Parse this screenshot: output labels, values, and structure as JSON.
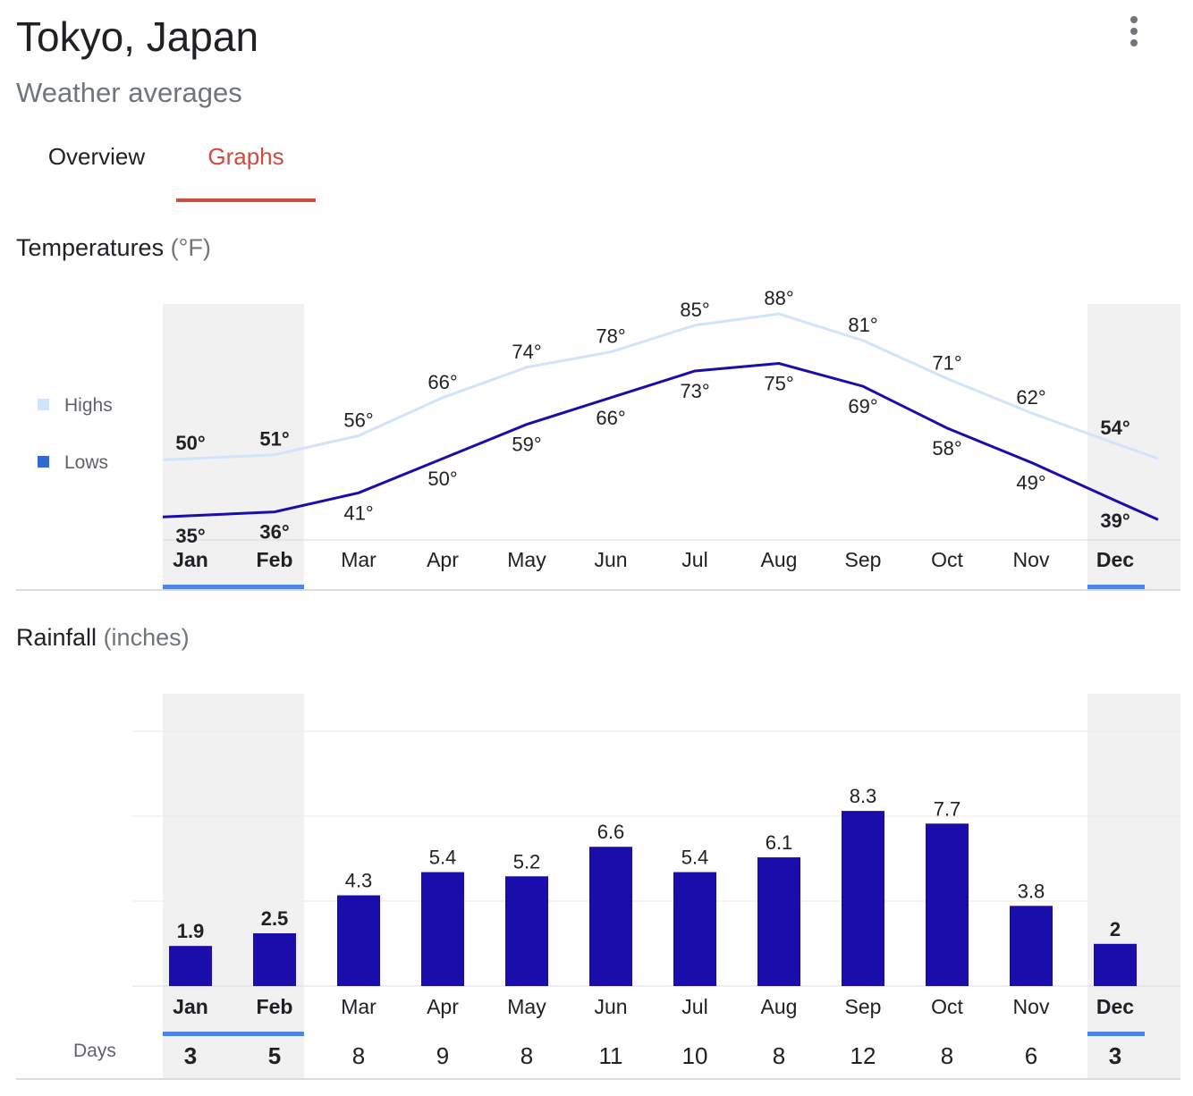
{
  "header": {
    "title": "Tokyo, Japan",
    "subtitle": "Weather averages"
  },
  "tabs": [
    {
      "label": "Overview",
      "active": false
    },
    {
      "label": "Graphs",
      "active": true
    }
  ],
  "temperatures": {
    "title": "Temperatures",
    "unit": "(°F)",
    "legend": [
      {
        "label": "Highs",
        "color": "#d2e3fc"
      },
      {
        "label": "Lows",
        "color": "#3367d6"
      }
    ]
  },
  "rainfall": {
    "title": "Rainfall",
    "unit": "(inches)",
    "days_label": "Days"
  },
  "colors": {
    "highs_line": "#d2e3fc",
    "lows_line": "#1a0dab",
    "bars": "#1a0dab",
    "highlight_band": "#f1f1f1",
    "highlight_underline": "#4f84e8",
    "active_tab": "#d14a3a"
  },
  "chart_data": [
    {
      "type": "line",
      "title": "Temperatures (°F)",
      "categories": [
        "Jan",
        "Feb",
        "Mar",
        "Apr",
        "May",
        "Jun",
        "Jul",
        "Aug",
        "Sep",
        "Oct",
        "Nov",
        "Dec"
      ],
      "highlighted_months": [
        "Jan",
        "Feb",
        "Dec"
      ],
      "series": [
        {
          "name": "Highs",
          "values": [
            50,
            51,
            56,
            66,
            74,
            78,
            85,
            88,
            81,
            71,
            62,
            54
          ],
          "color": "#d2e3fc"
        },
        {
          "name": "Lows",
          "values": [
            35,
            36,
            41,
            50,
            59,
            66,
            73,
            75,
            69,
            58,
            49,
            39
          ],
          "color": "#1a0dab"
        }
      ],
      "value_suffix": "°",
      "legend_position": "left"
    },
    {
      "type": "bar",
      "title": "Rainfall (inches)",
      "categories": [
        "Jan",
        "Feb",
        "Mar",
        "Apr",
        "May",
        "Jun",
        "Jul",
        "Aug",
        "Sep",
        "Oct",
        "Nov",
        "Dec"
      ],
      "highlighted_months": [
        "Jan",
        "Feb",
        "Dec"
      ],
      "values": [
        1.9,
        2.5,
        4.3,
        5.4,
        5.2,
        6.6,
        5.4,
        6.1,
        8.3,
        7.7,
        3.8,
        2
      ],
      "value_labels": [
        "1.9",
        "2.5",
        "4.3",
        "5.4",
        "5.2",
        "6.6",
        "5.4",
        "6.1",
        "8.3",
        "7.7",
        "3.8",
        "2"
      ],
      "days": [
        3,
        5,
        8,
        9,
        8,
        11,
        10,
        8,
        12,
        8,
        6,
        3
      ],
      "ylim": [
        0,
        10
      ],
      "grid": true,
      "color": "#1a0dab"
    }
  ]
}
